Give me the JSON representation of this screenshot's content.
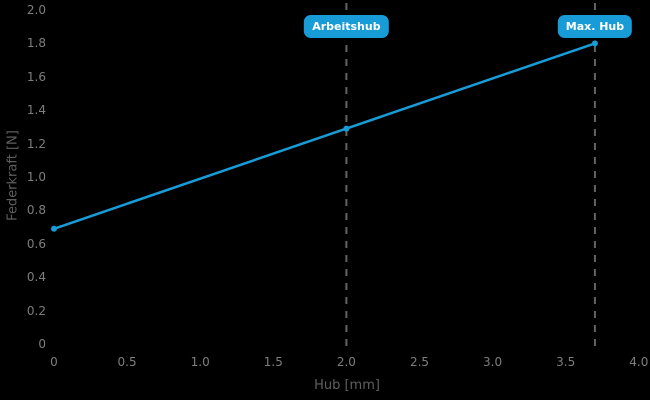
{
  "chart_data": {
    "type": "line",
    "title": "",
    "xlabel": "Hub [mm]",
    "ylabel": "Federkraft [N]",
    "xlim": [
      0,
      4.0
    ],
    "ylim": [
      0,
      2.0
    ],
    "grid": false,
    "legend": "none",
    "background_color": "#000000",
    "x_tick_values": [
      0,
      0.5,
      1.0,
      1.5,
      2.0,
      2.5,
      3.0,
      3.5,
      4.0
    ],
    "x_tick_labels": [
      "0",
      "0.5",
      "1.0",
      "1.5",
      "2.0",
      "2.5",
      "3.0",
      "3.5",
      "4.0"
    ],
    "y_tick_values": [
      0,
      0.2,
      0.4,
      0.6,
      0.8,
      1.0,
      1.2,
      1.4,
      1.6,
      1.8,
      2.0
    ],
    "y_tick_labels": [
      "0",
      "0.2",
      "0.4",
      "0.6",
      "0.8",
      "1.0",
      "1.2",
      "1.4",
      "1.6",
      "1.8",
      "2.0"
    ],
    "series": [
      {
        "name": "Federkraft",
        "color": "#189cd8",
        "marker": "circle",
        "points": [
          {
            "x": 0,
            "y": 0.69
          },
          {
            "x": 2.0,
            "y": 1.29
          },
          {
            "x": 3.7,
            "y": 1.8
          }
        ]
      }
    ],
    "annotations": [
      {
        "label": "Arbeitshub",
        "x": 2.0,
        "line_style": "dashed"
      },
      {
        "label": "Max. Hub",
        "x": 3.7,
        "line_style": "dashed"
      }
    ],
    "colors": {
      "line": "#189cd8",
      "badge_background": "#189cd8",
      "badge_text": "#ffffff",
      "tick_text": "#7e7e7e",
      "axis_title_text": "#5f5f5f",
      "reference_line": "#636363"
    }
  }
}
